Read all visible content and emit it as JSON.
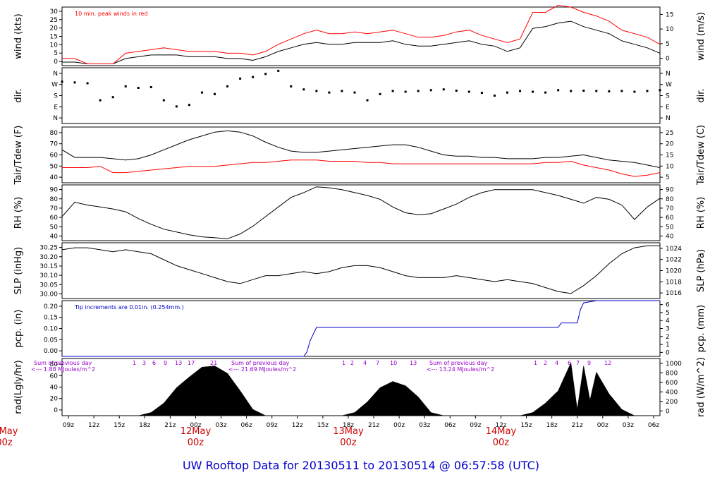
{
  "title": "UW Rooftop Data for 20130511  to  20130514 @ 06:57:58  (UTC)",
  "chart_data": [
    {
      "id": "wind",
      "type": "line",
      "ylabel_left": "wind (kts)",
      "ylabel_right": "wind (m/s)",
      "yticks_left": [
        "0",
        "5",
        "10",
        "15",
        "20",
        "25",
        "30"
      ],
      "yticks_right": [
        "0",
        "5",
        "10",
        "15"
      ],
      "ylim": [
        0,
        33
      ],
      "annotation": "10 min. peak winds in red",
      "series": [
        {
          "color": "#000000",
          "x": [
            0,
            2,
            4,
            6,
            8,
            10,
            12,
            14,
            16,
            18,
            20,
            22,
            24,
            26,
            28,
            30,
            32,
            34,
            36,
            38,
            40,
            42,
            44,
            46,
            48,
            50,
            52,
            54,
            56,
            58,
            60,
            62,
            64,
            66,
            68,
            70,
            72,
            74,
            76,
            78,
            80,
            82,
            84,
            86,
            88,
            90,
            92,
            94
          ],
          "y": [
            2,
            2,
            1,
            1,
            1,
            4,
            5,
            6,
            6,
            6,
            5,
            5,
            5,
            4,
            4,
            3,
            5,
            8,
            10,
            12,
            13,
            12,
            12,
            13,
            13,
            13,
            14,
            12,
            11,
            11,
            12,
            13,
            14,
            12,
            11,
            8,
            10,
            21,
            22,
            24,
            25,
            22,
            20,
            18,
            14,
            12,
            10,
            7
          ]
        },
        {
          "color": "#ff0000",
          "x": [
            0,
            2,
            4,
            6,
            8,
            10,
            12,
            14,
            16,
            18,
            20,
            22,
            24,
            26,
            28,
            30,
            32,
            34,
            36,
            38,
            40,
            42,
            44,
            46,
            48,
            50,
            52,
            54,
            56,
            58,
            60,
            62,
            64,
            66,
            68,
            70,
            72,
            74,
            76,
            78,
            80,
            82,
            84,
            86,
            88,
            90,
            92,
            94
          ],
          "y": [
            4,
            4,
            1,
            1,
            1,
            7,
            8,
            9,
            10,
            9,
            8,
            8,
            8,
            7,
            7,
            6,
            8,
            12,
            15,
            18,
            20,
            18,
            18,
            19,
            18,
            19,
            20,
            18,
            16,
            16,
            17,
            19,
            20,
            17,
            15,
            13,
            15,
            30,
            30,
            34,
            33,
            30,
            28,
            25,
            20,
            18,
            16,
            12
          ]
        }
      ]
    },
    {
      "id": "dir",
      "type": "scatter",
      "ylabel_left": "dir.",
      "ylabel_right": "dir.",
      "yticks_left": [
        "N",
        "E",
        "S",
        "W",
        "N"
      ],
      "yticks_right": [
        "N",
        "E",
        "S",
        "W",
        "N"
      ],
      "ylim": [
        0,
        360
      ],
      "series": [
        {
          "color": "#000000",
          "x": [
            0,
            2,
            4,
            6,
            8,
            10,
            12,
            14,
            16,
            18,
            20,
            22,
            24,
            26,
            28,
            30,
            32,
            34,
            36,
            38,
            40,
            42,
            44,
            46,
            48,
            50,
            52,
            54,
            56,
            58,
            60,
            62,
            64,
            66,
            68,
            70,
            72,
            74,
            76,
            78,
            80,
            82,
            84,
            86,
            88,
            90,
            92,
            94
          ],
          "y": [
            270,
            265,
            260,
            150,
            170,
            240,
            230,
            235,
            150,
            110,
            120,
            200,
            190,
            240,
            290,
            300,
            320,
            340,
            240,
            220,
            210,
            200,
            210,
            200,
            150,
            190,
            210,
            205,
            210,
            215,
            220,
            212,
            205,
            198,
            180,
            200,
            210,
            205,
            200,
            215,
            210,
            212,
            210,
            208,
            210,
            205,
            210,
            215
          ]
        }
      ]
    },
    {
      "id": "temp",
      "type": "line",
      "ylabel_left": "Tair/Tdew (F)",
      "ylabel_right": "Tair/Tdew (C)",
      "yticks_left": [
        "40",
        "50",
        "60",
        "70",
        "80"
      ],
      "yticks_right": [
        "5",
        "10",
        "15",
        "20",
        "25"
      ],
      "ylim": [
        38,
        82
      ],
      "series": [
        {
          "color": "#000000",
          "x": [
            0,
            2,
            4,
            6,
            8,
            10,
            12,
            14,
            16,
            18,
            20,
            22,
            24,
            26,
            28,
            30,
            32,
            34,
            36,
            38,
            40,
            42,
            44,
            46,
            48,
            50,
            52,
            54,
            56,
            58,
            60,
            62,
            64,
            66,
            68,
            70,
            72,
            74,
            76,
            78,
            80,
            82,
            84,
            86,
            88,
            90,
            92,
            94
          ],
          "y": [
            64,
            58,
            58,
            58,
            57,
            56,
            57,
            60,
            64,
            68,
            72,
            75,
            78,
            79,
            78,
            75,
            70,
            66,
            63,
            62,
            62,
            63,
            64,
            65,
            66,
            67,
            68,
            68,
            66,
            63,
            60,
            59,
            59,
            58,
            58,
            57,
            57,
            57,
            58,
            58,
            59,
            60,
            58,
            56,
            55,
            54,
            52,
            50
          ]
        },
        {
          "color": "#ff0000",
          "x": [
            0,
            2,
            4,
            6,
            8,
            10,
            12,
            14,
            16,
            18,
            20,
            22,
            24,
            26,
            28,
            30,
            32,
            34,
            36,
            38,
            40,
            42,
            44,
            46,
            48,
            50,
            52,
            54,
            56,
            58,
            60,
            62,
            64,
            66,
            68,
            70,
            72,
            74,
            76,
            78,
            80,
            82,
            84,
            86,
            88,
            90,
            92,
            94
          ],
          "y": [
            50,
            50,
            50,
            51,
            46,
            46,
            47,
            48,
            49,
            50,
            51,
            51,
            51,
            52,
            53,
            54,
            54,
            55,
            56,
            56,
            56,
            55,
            55,
            55,
            54,
            54,
            53,
            53,
            53,
            53,
            53,
            53,
            53,
            53,
            53,
            53,
            53,
            53,
            54,
            54,
            55,
            52,
            50,
            48,
            45,
            43,
            44,
            46
          ]
        }
      ]
    },
    {
      "id": "rh",
      "type": "line",
      "ylabel_left": "RH (%)",
      "ylabel_right": "RH (%)",
      "yticks_left": [
        "40",
        "50",
        "60",
        "70",
        "80",
        "90"
      ],
      "yticks_right": [
        "40",
        "50",
        "60",
        "70",
        "80",
        "90"
      ],
      "ylim": [
        35,
        93
      ],
      "series": [
        {
          "color": "#000000",
          "x": [
            0,
            2,
            4,
            6,
            8,
            10,
            12,
            14,
            16,
            18,
            20,
            22,
            24,
            26,
            28,
            30,
            32,
            34,
            36,
            38,
            40,
            42,
            44,
            46,
            48,
            50,
            52,
            54,
            56,
            58,
            60,
            62,
            64,
            66,
            68,
            70,
            72,
            74,
            76,
            78,
            80,
            82,
            84,
            86,
            88,
            90,
            92,
            94
          ],
          "y": [
            60,
            75,
            72,
            70,
            68,
            65,
            58,
            52,
            47,
            44,
            41,
            39,
            38,
            37,
            42,
            50,
            60,
            70,
            80,
            85,
            91,
            90,
            88,
            85,
            82,
            78,
            70,
            64,
            62,
            63,
            68,
            73,
            80,
            85,
            88,
            88,
            88,
            88,
            85,
            82,
            78,
            74,
            80,
            78,
            72,
            57,
            70,
            79
          ]
        }
      ]
    },
    {
      "id": "slp",
      "type": "line",
      "ylabel_left": "SLP (inHg)",
      "ylabel_right": "SLP (hPa)",
      "yticks_left": [
        "30.00",
        "30.05",
        "30.10",
        "30.15",
        "30.20",
        "30.25"
      ],
      "yticks_right": [
        "1016",
        "1018",
        "1020",
        "1022",
        "1024"
      ],
      "ylim": [
        29.985,
        30.265
      ],
      "series": [
        {
          "color": "#000000",
          "x": [
            0,
            2,
            4,
            6,
            8,
            10,
            12,
            14,
            16,
            18,
            20,
            22,
            24,
            26,
            28,
            30,
            32,
            34,
            36,
            38,
            40,
            42,
            44,
            46,
            48,
            50,
            52,
            54,
            56,
            58,
            60,
            62,
            64,
            66,
            68,
            70,
            72,
            74,
            76,
            78,
            80,
            82,
            84,
            86,
            88,
            90,
            92,
            94
          ],
          "y": [
            30.23,
            30.24,
            30.24,
            30.23,
            30.22,
            30.23,
            30.22,
            30.21,
            30.18,
            30.15,
            30.13,
            30.11,
            30.09,
            30.07,
            30.06,
            30.08,
            30.1,
            30.1,
            30.11,
            30.12,
            30.11,
            30.12,
            30.14,
            30.15,
            30.15,
            30.14,
            30.12,
            30.1,
            30.09,
            30.09,
            30.09,
            30.1,
            30.09,
            30.08,
            30.07,
            30.08,
            30.07,
            30.06,
            30.04,
            30.02,
            30.01,
            30.05,
            30.1,
            30.16,
            30.21,
            30.24,
            30.25,
            30.25
          ]
        }
      ]
    },
    {
      "id": "pcp",
      "type": "line",
      "ylabel_left": "pcp. (in)",
      "ylabel_right": "pcp. (mm)",
      "yticks_left": [
        "0.00",
        "0.05",
        "0.10",
        "0.15",
        "0.20"
      ],
      "yticks_right": [
        "0",
        "1",
        "2",
        "3",
        "4",
        "5",
        "6"
      ],
      "ylim": [
        0,
        0.25
      ],
      "annotation": "Tip increments are 0.01in. (0.254mm.)",
      "series": [
        {
          "color": "#0000cc",
          "x": [
            0,
            38,
            38.5,
            39,
            40,
            78,
            78.5,
            81,
            81.5,
            82,
            84,
            94
          ],
          "y": [
            0,
            0,
            0.02,
            0.07,
            0.13,
            0.13,
            0.15,
            0.15,
            0.21,
            0.24,
            0.25,
            0.25
          ]
        }
      ]
    },
    {
      "id": "rad",
      "type": "area",
      "ylabel_left": "rad(Lgly/hr)",
      "ylabel_right": "rad (W/m^2)",
      "yticks_left": [
        "0",
        "20",
        "40",
        "60",
        "80"
      ],
      "yticks_right": [
        "0",
        "200",
        "400",
        "600",
        "800",
        "1000"
      ],
      "ylim": [
        0,
        92
      ],
      "series": [
        {
          "color": "#000000",
          "x": [
            0,
            8,
            12,
            14,
            16,
            18,
            20,
            22,
            24,
            26,
            28,
            30,
            32,
            34,
            36,
            38,
            40,
            42,
            44,
            46,
            48,
            50,
            52,
            54,
            56,
            58,
            60,
            62,
            64,
            66,
            68,
            70,
            72,
            74,
            76,
            78,
            80,
            81,
            82,
            83,
            84,
            86,
            88,
            90,
            94
          ],
          "y": [
            0,
            0,
            0,
            5,
            20,
            45,
            62,
            78,
            80,
            68,
            40,
            10,
            0,
            0,
            0,
            0,
            0,
            0,
            0,
            5,
            22,
            45,
            55,
            48,
            30,
            5,
            0,
            0,
            0,
            0,
            0,
            0,
            0,
            5,
            20,
            40,
            85,
            10,
            80,
            25,
            70,
            35,
            10,
            0,
            0
          ]
        }
      ]
    }
  ],
  "rad_labels": [
    {
      "line1": "Sum of previous day",
      "line2": "<--- 1.88 MJoules/m^2"
    },
    {
      "line1": "Sum of previous day",
      "line2": "<--- 21.69 MJoules/m^2"
    },
    {
      "line1": "Sum of previous day",
      "line2": "<--- 13.24 MJoules/m^2"
    }
  ],
  "rad_hours": [
    [
      "1",
      "3",
      "6",
      "9",
      "13",
      "17",
      "21"
    ],
    [
      "1",
      "2",
      "4",
      "7",
      "10",
      "13"
    ],
    [
      "1",
      "2",
      "4",
      "6",
      "7",
      "9",
      "12"
    ]
  ],
  "x_ticks": [
    "09z",
    "12z",
    "15z",
    "18z",
    "21z",
    "00z",
    "03z",
    "06z",
    "09z",
    "12z",
    "15z",
    "18z",
    "21z",
    "00z",
    "03z",
    "06z",
    "09z",
    "12z",
    "15z",
    "18z",
    "21z",
    "00z",
    "03z",
    "06z"
  ],
  "day_labels": [
    {
      "line1": "May",
      "line2": "00z"
    },
    {
      "line1": "12May",
      "line2": "00z"
    },
    {
      "line1": "13May",
      "line2": "00z"
    },
    {
      "line1": "14May",
      "line2": "00z"
    }
  ]
}
